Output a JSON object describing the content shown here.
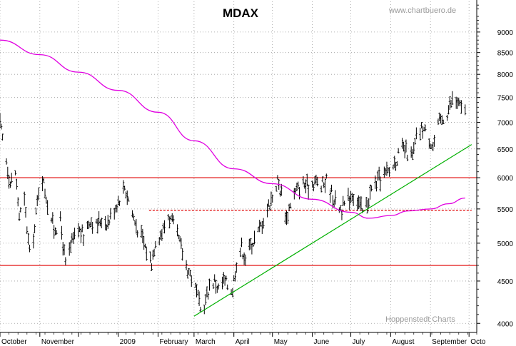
{
  "chart_data": {
    "type": "bar",
    "subtype": "ohlc-daily",
    "title": "MDAX",
    "watermark_top": "www.chartbuero.de",
    "watermark_bottom": "Hoppenstedt Charts",
    "y_scale": "log",
    "ylim": [
      3900,
      9800
    ],
    "y_ticks": [
      4000,
      4500,
      5000,
      5500,
      6000,
      6500,
      7000,
      7500,
      8000,
      8500,
      9000
    ],
    "y_tick_labels": [
      "4000",
      "4500",
      "5000",
      "5500",
      "6000",
      "6500",
      "7000",
      "7500",
      "8000",
      "8500",
      "9000"
    ],
    "xlim": [
      "2008-10-01",
      "2009-10-07"
    ],
    "x_ticks": [
      {
        "date": "2008-10-01",
        "label": "October"
      },
      {
        "date": "2008-11-01",
        "label": "November"
      },
      {
        "date": "2008-12-01",
        "label": ""
      },
      {
        "date": "2009-01-01",
        "label": "2009"
      },
      {
        "date": "2009-02-01",
        "label": "February"
      },
      {
        "date": "2009-03-01",
        "label": "March"
      },
      {
        "date": "2009-04-01",
        "label": "April"
      },
      {
        "date": "2009-05-01",
        "label": "May"
      },
      {
        "date": "2009-06-01",
        "label": "June"
      },
      {
        "date": "2009-07-01",
        "label": "July"
      },
      {
        "date": "2009-08-01",
        "label": "August"
      },
      {
        "date": "2009-09-01",
        "label": "September"
      },
      {
        "date": "2009-10-01",
        "label": "Octo"
      }
    ],
    "price_anchors": [
      [
        "2008-10-01",
        6950
      ],
      [
        "2008-10-06",
        6300
      ],
      [
        "2008-10-09",
        5900
      ],
      [
        "2008-10-13",
        6100
      ],
      [
        "2008-10-16",
        5400
      ],
      [
        "2008-10-20",
        5600
      ],
      [
        "2008-10-24",
        4850
      ],
      [
        "2008-10-28",
        5200
      ],
      [
        "2008-10-31",
        5800
      ],
      [
        "2008-11-03",
        6000
      ],
      [
        "2008-11-07",
        5600
      ],
      [
        "2008-11-12",
        5200
      ],
      [
        "2008-11-17",
        5300
      ],
      [
        "2008-11-21",
        4700
      ],
      [
        "2008-11-26",
        5000
      ],
      [
        "2008-12-01",
        5200
      ],
      [
        "2008-12-05",
        5100
      ],
      [
        "2008-12-10",
        5350
      ],
      [
        "2008-12-15",
        5250
      ],
      [
        "2008-12-19",
        5350
      ],
      [
        "2008-12-24",
        5300
      ],
      [
        "2008-12-30",
        5550
      ],
      [
        "2009-01-06",
        5850
      ],
      [
        "2009-01-09",
        5650
      ],
      [
        "2009-01-14",
        5300
      ],
      [
        "2009-01-20",
        5050
      ],
      [
        "2009-01-23",
        4900
      ],
      [
        "2009-01-27",
        4750
      ],
      [
        "2009-01-30",
        5050
      ],
      [
        "2009-02-04",
        5150
      ],
      [
        "2009-02-09",
        5400
      ],
      [
        "2009-02-13",
        5250
      ],
      [
        "2009-02-17",
        5050
      ],
      [
        "2009-02-23",
        4700
      ],
      [
        "2009-02-27",
        4550
      ],
      [
        "2009-03-03",
        4350
      ],
      [
        "2009-03-06",
        4150
      ],
      [
        "2009-03-10",
        4250
      ],
      [
        "2009-03-13",
        4450
      ],
      [
        "2009-03-17",
        4500
      ],
      [
        "2009-03-20",
        4400
      ],
      [
        "2009-03-24",
        4500
      ],
      [
        "2009-03-27",
        4450
      ],
      [
        "2009-03-31",
        4400
      ],
      [
        "2009-04-03",
        4750
      ],
      [
        "2009-04-07",
        4950
      ],
      [
        "2009-04-10",
        4800
      ],
      [
        "2009-04-15",
        5000
      ],
      [
        "2009-04-20",
        5150
      ],
      [
        "2009-04-24",
        5350
      ],
      [
        "2009-04-28",
        5550
      ],
      [
        "2009-05-01",
        5700
      ],
      [
        "2009-05-05",
        5950
      ],
      [
        "2009-05-08",
        5750
      ],
      [
        "2009-05-12",
        5350
      ],
      [
        "2009-05-15",
        5600
      ],
      [
        "2009-05-20",
        5800
      ],
      [
        "2009-05-25",
        5900
      ],
      [
        "2009-05-29",
        5850
      ],
      [
        "2009-06-03",
        5950
      ],
      [
        "2009-06-08",
        5850
      ],
      [
        "2009-06-12",
        5950
      ],
      [
        "2009-06-16",
        5750
      ],
      [
        "2009-06-19",
        5600
      ],
      [
        "2009-06-24",
        5500
      ],
      [
        "2009-06-29",
        5650
      ],
      [
        "2009-07-02",
        5750
      ],
      [
        "2009-07-07",
        5600
      ],
      [
        "2009-07-10",
        5450
      ],
      [
        "2009-07-14",
        5600
      ],
      [
        "2009-07-17",
        5800
      ],
      [
        "2009-07-22",
        5950
      ],
      [
        "2009-07-27",
        6050
      ],
      [
        "2009-07-31",
        6100
      ],
      [
        "2009-08-05",
        6300
      ],
      [
        "2009-08-10",
        6500
      ],
      [
        "2009-08-13",
        6450
      ],
      [
        "2009-08-18",
        6350
      ],
      [
        "2009-08-21",
        6700
      ],
      [
        "2009-08-26",
        6900
      ],
      [
        "2009-08-31",
        6700
      ],
      [
        "2009-09-03",
        6550
      ],
      [
        "2009-09-08",
        7000
      ],
      [
        "2009-09-14",
        7200
      ],
      [
        "2009-09-18",
        7450
      ],
      [
        "2009-09-22",
        7400
      ],
      [
        "2009-09-25",
        7250
      ],
      [
        "2009-09-28",
        7300
      ]
    ],
    "ma_long": {
      "color": "#e000e0",
      "points": [
        [
          "2008-10-01",
          8800
        ],
        [
          "2008-11-01",
          8450
        ],
        [
          "2008-12-01",
          8050
        ],
        [
          "2009-01-01",
          7650
        ],
        [
          "2009-02-01",
          7200
        ],
        [
          "2009-03-01",
          6650
        ],
        [
          "2009-04-01",
          6150
        ],
        [
          "2009-05-01",
          5900
        ],
        [
          "2009-06-01",
          5650
        ],
        [
          "2009-07-01",
          5450
        ],
        [
          "2009-07-15",
          5360
        ],
        [
          "2009-08-01",
          5400
        ],
        [
          "2009-08-15",
          5470
        ],
        [
          "2009-09-01",
          5500
        ],
        [
          "2009-09-15",
          5580
        ],
        [
          "2009-09-28",
          5670
        ]
      ]
    },
    "trendline": {
      "color": "#00b000",
      "from": [
        "2009-03-01",
        4080
      ],
      "to": [
        "2009-10-03",
        6580
      ]
    },
    "resistance_lines": [
      {
        "value": 6000,
        "color": "#e00000",
        "style": "solid"
      },
      {
        "value": 4700,
        "color": "#e00000",
        "style": "solid"
      },
      {
        "value": 5480,
        "color": "#e00000",
        "style": "dashed",
        "from": "2009-01-25",
        "to": "2009-10-03"
      }
    ],
    "grid": true,
    "axis_position": "right"
  }
}
